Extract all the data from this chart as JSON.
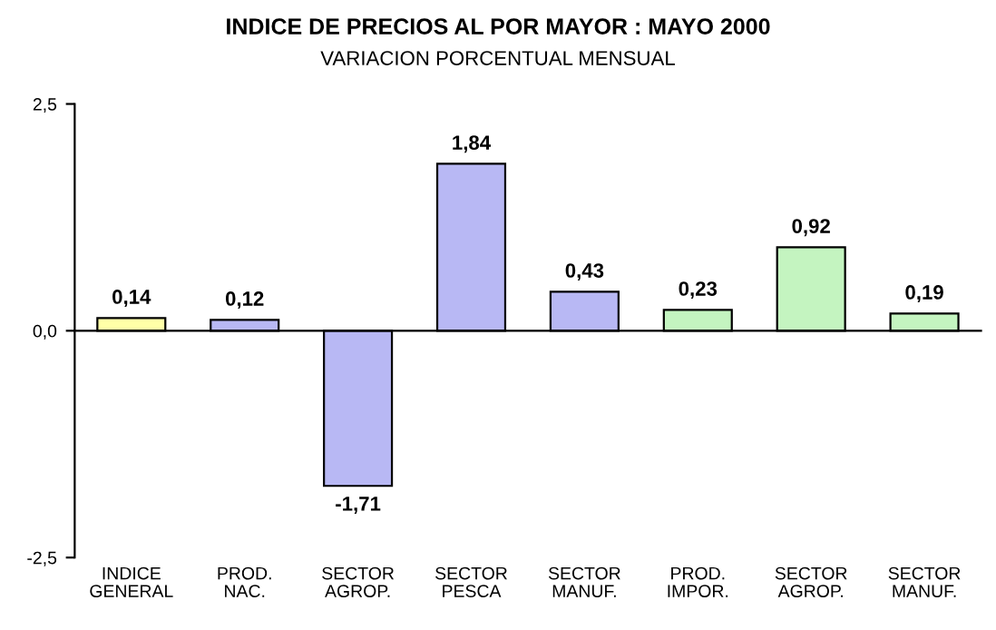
{
  "chart_data": {
    "type": "bar",
    "title": "INDICE DE PRECIOS AL POR MAYOR : MAYO 2000",
    "subtitle": "VARIACION PORCENTUAL MENSUAL",
    "categories": [
      "INDICE\nGENERAL",
      "PROD.\nNAC.",
      "SECTOR\nAGROP.",
      "SECTOR\nPESCA",
      "SECTOR\nMANUF.",
      "PROD.\nIMPOR.",
      "SECTOR\nAGROP.",
      "SECTOR\nMANUF."
    ],
    "values": [
      0.14,
      0.12,
      -1.71,
      1.84,
      0.43,
      0.23,
      0.92,
      0.19
    ],
    "value_labels": [
      "0,14",
      "0,12",
      "-1,71",
      "1,84",
      "0,43",
      "0,23",
      "0,92",
      "0,19"
    ],
    "colors": [
      "#ffffa8",
      "#b8b8f4",
      "#b8b8f4",
      "#b8b8f4",
      "#b8b8f4",
      "#c4f4c0",
      "#c4f4c0",
      "#c4f4c0"
    ],
    "ylim": [
      -2.5,
      2.5
    ],
    "yticks": [
      {
        "value": -2.5,
        "label": "-2,5"
      },
      {
        "value": 0,
        "label": "0,0"
      },
      {
        "value": 2.5,
        "label": "2,5"
      }
    ],
    "legend": false
  }
}
